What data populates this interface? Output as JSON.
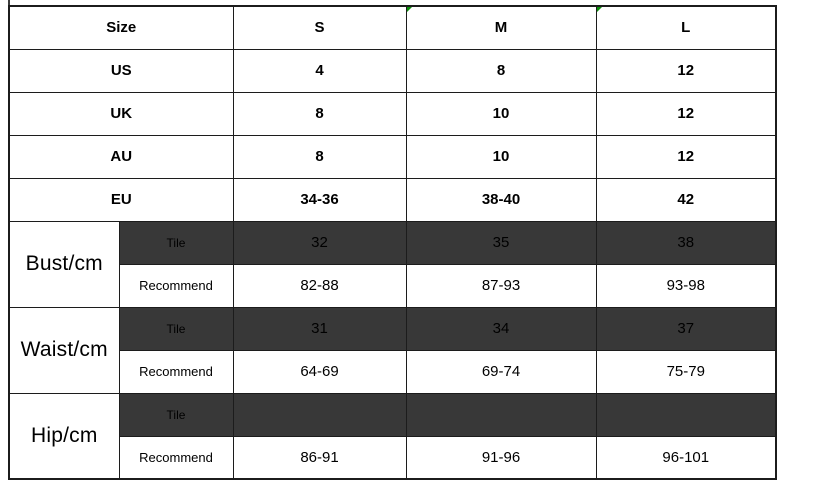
{
  "colors": {
    "background": "#ffffff",
    "grid_border": "#1c1c1c",
    "dark_fill": "#383838",
    "dark_text": "#f0f0f0",
    "text": "#000000",
    "marker_green": "#0a8e0a"
  },
  "table": {
    "header": {
      "size_label": "Size",
      "columns": [
        "S",
        "M",
        "L"
      ]
    },
    "conversions": [
      {
        "label": "US",
        "values": [
          "4",
          "8",
          "12"
        ]
      },
      {
        "label": "UK",
        "values": [
          "8",
          "10",
          "12"
        ]
      },
      {
        "label": "AU",
        "values": [
          "8",
          "10",
          "12"
        ]
      },
      {
        "label": "EU",
        "values": [
          "34-36",
          "38-40",
          "42"
        ]
      }
    ],
    "sections": [
      {
        "label": "Bust/cm",
        "tile": {
          "label": "Tile",
          "values": [
            "32",
            "35",
            "38"
          ]
        },
        "recommend": {
          "label": "Recommend",
          "values": [
            "82-88",
            "87-93",
            "93-98"
          ]
        }
      },
      {
        "label": "Waist/cm",
        "tile": {
          "label": "Tile",
          "values": [
            "31",
            "34",
            "37"
          ]
        },
        "recommend": {
          "label": "Recommend",
          "values": [
            "64-69",
            "69-74",
            "75-79"
          ]
        }
      },
      {
        "label": "Hip/cm",
        "tile": {
          "label": "Tile",
          "values": [
            "",
            "",
            ""
          ]
        },
        "recommend": {
          "label": "Recommend",
          "values": [
            "86-91",
            "91-96",
            "96-101"
          ]
        }
      }
    ]
  },
  "chart_data": {
    "type": "table",
    "title": "Garment size conversion and measurement chart",
    "columns": [
      "Size",
      "S",
      "M",
      "L"
    ],
    "rows": [
      [
        "US",
        "4",
        "8",
        "12"
      ],
      [
        "UK",
        "8",
        "10",
        "12"
      ],
      [
        "AU",
        "8",
        "10",
        "12"
      ],
      [
        "EU",
        "34-36",
        "38-40",
        "42"
      ],
      [
        "Bust/cm Tile",
        "32",
        "35",
        "38"
      ],
      [
        "Bust/cm Recommend",
        "82-88",
        "87-93",
        "93-98"
      ],
      [
        "Waist/cm Tile",
        "31",
        "34",
        "37"
      ],
      [
        "Waist/cm Recommend",
        "64-69",
        "69-74",
        "75-79"
      ],
      [
        "Hip/cm Tile",
        "",
        "",
        ""
      ],
      [
        "Hip/cm Recommend",
        "86-91",
        "91-96",
        "96-101"
      ]
    ],
    "layout": {
      "dark_rows": [
        "Bust/cm Tile",
        "Waist/cm Tile",
        "Hip/cm Tile"
      ],
      "grid": true
    }
  }
}
